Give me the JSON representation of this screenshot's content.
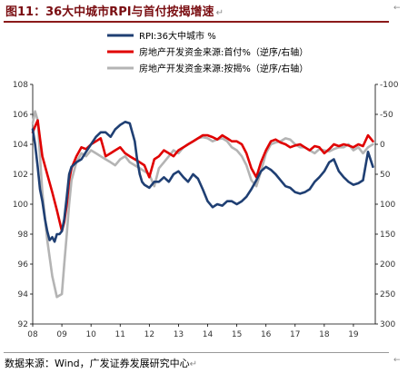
{
  "figure": {
    "title": "图11：36大中城市RPI与首付按揭增速",
    "source": "数据来源：Wind，广发证券发展研究中心",
    "edit_mark": "↵",
    "corner_marks": [
      "←",
      "←"
    ]
  },
  "colors": {
    "title": "#7a0e12",
    "rpi": "#1f3f73",
    "downpay": "#e00000",
    "mortgage": "#b4b4b4"
  },
  "chart_data": {
    "type": "line",
    "legend_placement": "top-left",
    "grid": false,
    "x_ticks": [
      "08",
      "09",
      "10",
      "11",
      "12",
      "13",
      "14",
      "15",
      "16",
      "17",
      "18",
      "19"
    ],
    "xlim": [
      2008.0,
      2019.75
    ],
    "ylim_left": [
      92,
      108
    ],
    "y_ticks_left": [
      "92",
      "94",
      "96",
      "98",
      "100",
      "102",
      "104",
      "106",
      "108"
    ],
    "ylim_right": [
      -100,
      300
    ],
    "y_ticks_right": [
      "-100",
      "-50",
      "0",
      "50",
      "100",
      "150",
      "200",
      "250",
      "300"
    ],
    "right_axis_inverted": true,
    "series": [
      {
        "name": "RPI:36大中城市 %",
        "axis": "left",
        "color": "#1f3f73",
        "x": [
          2008.0,
          2008.08,
          2008.17,
          2008.25,
          2008.33,
          2008.42,
          2008.5,
          2008.58,
          2008.67,
          2008.75,
          2008.83,
          2008.92,
          2009.0,
          2009.08,
          2009.17,
          2009.25,
          2009.33,
          2009.5,
          2009.67,
          2009.83,
          2010.0,
          2010.17,
          2010.33,
          2010.5,
          2010.67,
          2010.83,
          2011.0,
          2011.17,
          2011.33,
          2011.5,
          2011.58,
          2011.67,
          2011.75,
          2011.83,
          2012.0,
          2012.17,
          2012.33,
          2012.5,
          2012.67,
          2012.83,
          2013.0,
          2013.17,
          2013.33,
          2013.5,
          2013.67,
          2013.83,
          2014.0,
          2014.17,
          2014.33,
          2014.5,
          2014.67,
          2014.83,
          2015.0,
          2015.17,
          2015.33,
          2015.5,
          2015.67,
          2015.83,
          2016.0,
          2016.17,
          2016.33,
          2016.5,
          2016.67,
          2016.83,
          2017.0,
          2017.17,
          2017.33,
          2017.5,
          2017.67,
          2017.83,
          2018.0,
          2018.17,
          2018.33,
          2018.5,
          2018.67,
          2018.83,
          2019.0,
          2019.17,
          2019.33,
          2019.5,
          2019.67
        ],
        "y": [
          105.0,
          104.0,
          102.5,
          101.0,
          100.2,
          99.0,
          98.2,
          97.6,
          97.8,
          97.5,
          98.0,
          98.0,
          98.2,
          99.0,
          100.5,
          102.0,
          102.5,
          102.8,
          103.0,
          103.5,
          104.0,
          104.5,
          104.8,
          104.8,
          104.5,
          105.0,
          105.3,
          105.5,
          105.4,
          104.2,
          103.0,
          102.0,
          101.5,
          101.3,
          101.1,
          101.5,
          101.5,
          101.8,
          101.5,
          102.0,
          102.2,
          101.8,
          101.5,
          102.0,
          101.7,
          101.0,
          100.2,
          99.8,
          100.0,
          99.9,
          100.2,
          100.2,
          100.0,
          100.2,
          100.5,
          101.0,
          101.6,
          102.2,
          102.5,
          102.3,
          102.0,
          101.6,
          101.2,
          101.1,
          100.8,
          100.7,
          100.8,
          101.0,
          101.5,
          101.8,
          102.2,
          102.8,
          103.0,
          102.2,
          101.8,
          101.5,
          101.3,
          101.4,
          101.6,
          103.5,
          102.5
        ]
      },
      {
        "name": "房地产开发资金来源:首付%（逆序/右轴）",
        "axis": "right",
        "color": "#e00000",
        "x": [
          2008.0,
          2008.08,
          2008.17,
          2008.25,
          2008.33,
          2008.5,
          2008.67,
          2008.83,
          2009.0,
          2009.08,
          2009.17,
          2009.25,
          2009.33,
          2009.5,
          2009.67,
          2009.83,
          2010.0,
          2010.17,
          2010.33,
          2010.42,
          2010.5,
          2010.67,
          2010.83,
          2011.0,
          2011.17,
          2011.33,
          2011.5,
          2011.67,
          2011.83,
          2012.0,
          2012.17,
          2012.33,
          2012.5,
          2012.67,
          2012.83,
          2013.0,
          2013.17,
          2013.33,
          2013.5,
          2013.67,
          2013.83,
          2014.0,
          2014.17,
          2014.33,
          2014.5,
          2014.67,
          2014.83,
          2015.0,
          2015.17,
          2015.33,
          2015.5,
          2015.67,
          2015.83,
          2016.0,
          2016.17,
          2016.33,
          2016.5,
          2016.67,
          2016.83,
          2017.0,
          2017.17,
          2017.33,
          2017.5,
          2017.67,
          2017.83,
          2018.0,
          2018.17,
          2018.33,
          2018.5,
          2018.67,
          2018.83,
          2019.0,
          2019.17,
          2019.33,
          2019.5,
          2019.67
        ],
        "y": [
          -20,
          -30,
          -40,
          -10,
          20,
          50,
          80,
          110,
          145,
          130,
          100,
          60,
          40,
          20,
          5,
          8,
          0,
          -5,
          -10,
          5,
          20,
          15,
          10,
          5,
          15,
          20,
          25,
          30,
          35,
          55,
          25,
          20,
          10,
          15,
          20,
          10,
          5,
          0,
          -5,
          -10,
          -15,
          -15,
          -12,
          -8,
          -15,
          -10,
          -5,
          -5,
          0,
          15,
          40,
          55,
          30,
          10,
          -5,
          -8,
          -3,
          0,
          5,
          2,
          0,
          5,
          10,
          3,
          5,
          15,
          8,
          0,
          3,
          0,
          2,
          5,
          0,
          3,
          -15,
          -5
        ]
      },
      {
        "name": "房地产开发资金来源:按揭%（逆序/右轴）",
        "axis": "right",
        "color": "#b4b4b4",
        "x": [
          2008.0,
          2008.08,
          2008.17,
          2008.25,
          2008.33,
          2008.5,
          2008.67,
          2008.83,
          2009.0,
          2009.08,
          2009.17,
          2009.25,
          2009.33,
          2009.5,
          2009.67,
          2009.83,
          2010.0,
          2010.17,
          2010.33,
          2010.5,
          2010.67,
          2010.83,
          2011.0,
          2011.17,
          2011.33,
          2011.5,
          2011.67,
          2011.83,
          2012.0,
          2012.17,
          2012.33,
          2012.5,
          2012.67,
          2012.83,
          2013.0,
          2013.17,
          2013.33,
          2013.5,
          2013.67,
          2013.83,
          2014.0,
          2014.17,
          2014.33,
          2014.5,
          2014.67,
          2014.83,
          2015.0,
          2015.17,
          2015.33,
          2015.5,
          2015.67,
          2015.83,
          2016.0,
          2016.17,
          2016.33,
          2016.5,
          2016.67,
          2016.83,
          2017.0,
          2017.17,
          2017.33,
          2017.5,
          2017.67,
          2017.83,
          2018.0,
          2018.17,
          2018.33,
          2018.5,
          2018.67,
          2018.83,
          2019.0,
          2019.17,
          2019.33,
          2019.5,
          2019.67
        ],
        "y": [
          -35,
          -55,
          -40,
          20,
          80,
          160,
          220,
          255,
          250,
          200,
          150,
          100,
          60,
          30,
          15,
          20,
          10,
          15,
          20,
          25,
          30,
          35,
          25,
          20,
          30,
          35,
          40,
          45,
          50,
          70,
          40,
          30,
          20,
          10,
          15,
          5,
          0,
          -5,
          -10,
          -12,
          -10,
          -5,
          -8,
          -10,
          -5,
          5,
          10,
          20,
          35,
          60,
          70,
          45,
          15,
          0,
          -3,
          -5,
          -10,
          -8,
          0,
          5,
          5,
          10,
          15,
          8,
          10,
          12,
          8,
          5,
          5,
          0,
          10,
          5,
          15,
          5,
          0
        ]
      }
    ]
  }
}
